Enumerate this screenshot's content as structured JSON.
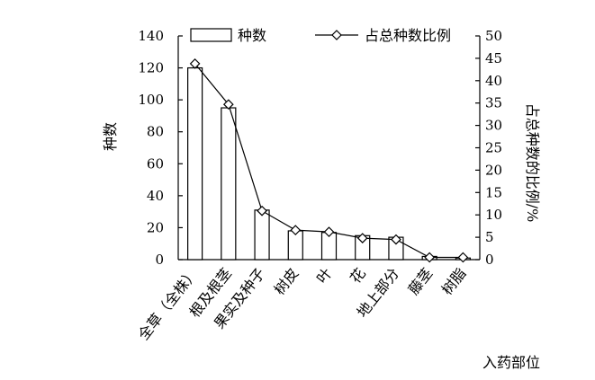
{
  "chart_data": {
    "type": "bar",
    "categories": [
      "全草（全株）",
      "根及根茎",
      "果实及种子",
      "树皮",
      "叶",
      "花",
      "地上部分",
      "藤茎",
      "树脂"
    ],
    "series": [
      {
        "name": "种数",
        "type": "bar",
        "axis": "left",
        "values": [
          120,
          95,
          31,
          18,
          17,
          15,
          14,
          2,
          1
        ]
      },
      {
        "name": "占总种数比例",
        "type": "line",
        "axis": "right",
        "values": [
          43.8,
          34.7,
          10.9,
          6.6,
          6.2,
          4.8,
          4.5,
          0.5,
          0.5
        ]
      }
    ],
    "ylabel": "种数",
    "y2label": "占总种数的比例/%",
    "xlabel": "入药部位",
    "ylim": [
      0,
      140
    ],
    "y2lim": [
      0,
      50
    ],
    "yticks": [
      "0",
      "20",
      "40",
      "60",
      "80",
      "100",
      "120",
      "140"
    ],
    "y2ticks": [
      "0",
      "5",
      "10",
      "15",
      "20",
      "25",
      "30",
      "35",
      "40",
      "45",
      "50"
    ],
    "grid": false,
    "legend": "top"
  }
}
